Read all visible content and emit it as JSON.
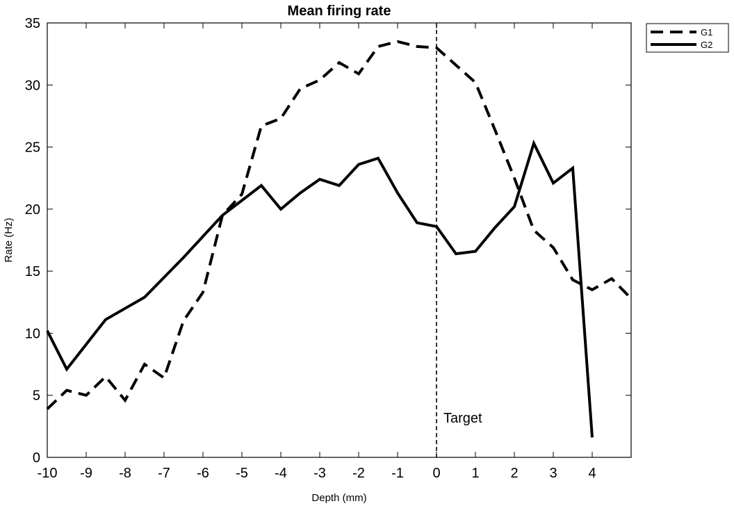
{
  "chart_data": {
    "type": "line",
    "title": "Mean firing rate",
    "xlabel": "Depth (mm)",
    "ylabel": "Rate (Hz)",
    "xlim": [
      -10,
      5
    ],
    "ylim": [
      0,
      35
    ],
    "xticks": [
      -10,
      -9,
      -8,
      -7,
      -6,
      -5,
      -4,
      -3,
      -2,
      -1,
      0,
      1,
      2,
      3,
      4
    ],
    "yticks": [
      0,
      5,
      10,
      15,
      20,
      25,
      30,
      35
    ],
    "grid": false,
    "legend_position": "outside-top-right",
    "series": [
      {
        "name": "G1",
        "style": "dashed",
        "color": "#000000",
        "x": [
          -10,
          -9.5,
          -9,
          -8.5,
          -8,
          -7.5,
          -7,
          -6.5,
          -6,
          -5.5,
          -5,
          -4.5,
          -4,
          -3.5,
          -3,
          -2.5,
          -2,
          -1.5,
          -1,
          -0.5,
          0,
          0.5,
          1,
          1.5,
          2,
          2.5,
          3,
          3.5,
          4,
          4.5,
          5
        ],
        "y": [
          3.9,
          5.4,
          5.0,
          6.5,
          4.6,
          7.5,
          6.4,
          11.0,
          13.3,
          19.5,
          21.2,
          26.7,
          27.3,
          29.7,
          30.4,
          31.8,
          30.9,
          33.1,
          33.5,
          33.1,
          33.0,
          31.6,
          30.2,
          26.4,
          22.5,
          18.3,
          16.9,
          14.3,
          13.5,
          14.4,
          12.8
        ]
      },
      {
        "name": "G2",
        "style": "solid",
        "color": "#000000",
        "x": [
          -10,
          -9.5,
          -9,
          -8.5,
          -8,
          -7.5,
          -7,
          -6.5,
          -6,
          -5.5,
          -5,
          -4.5,
          -4,
          -3.5,
          -3,
          -2.5,
          -2,
          -1.5,
          -1,
          -0.5,
          0,
          0.5,
          1,
          1.5,
          2,
          2.5,
          3,
          3.5,
          4
        ],
        "y": [
          10.2,
          7.1,
          9.1,
          11.1,
          12.0,
          12.9,
          14.5,
          16.1,
          17.8,
          19.5,
          20.7,
          21.9,
          20.0,
          21.3,
          22.4,
          21.9,
          23.6,
          24.1,
          21.3,
          18.9,
          18.6,
          16.4,
          16.6,
          18.5,
          20.2,
          25.3,
          22.1,
          23.3,
          1.6
        ]
      }
    ],
    "annotations": [
      {
        "type": "vline",
        "x": 0,
        "style": "dashed",
        "label": "Target",
        "label_y": 3.2
      }
    ]
  }
}
